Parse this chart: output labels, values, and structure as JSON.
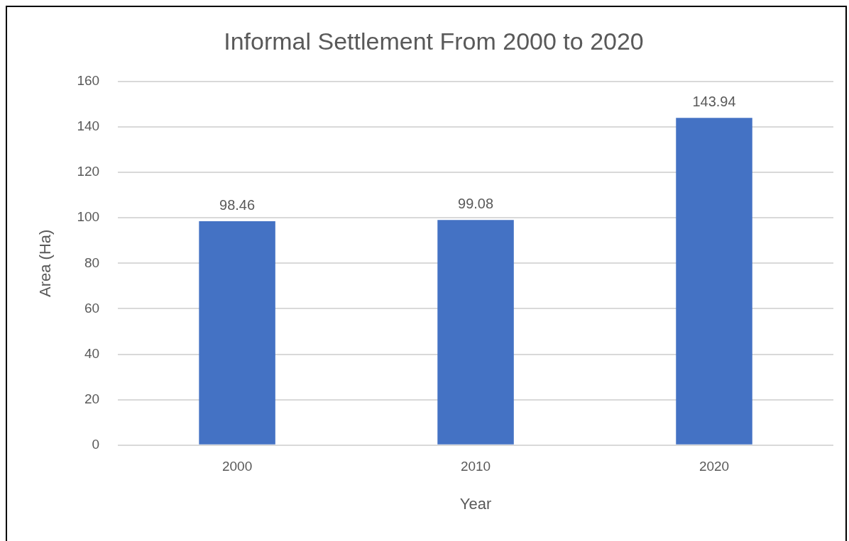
{
  "chart_data": {
    "type": "bar",
    "title": "Informal Settlement From 2000 to 2020",
    "xlabel": "Year",
    "ylabel": "Area (Ha)",
    "categories": [
      "2000",
      "2010",
      "2020"
    ],
    "values": [
      98.46,
      99.08,
      143.94
    ],
    "color": "#4472c4",
    "ylim": [
      0,
      160
    ],
    "yticks": [
      0,
      20,
      40,
      60,
      80,
      100,
      120,
      140,
      160
    ],
    "grid": "y",
    "data_labels": true,
    "legend": false
  }
}
